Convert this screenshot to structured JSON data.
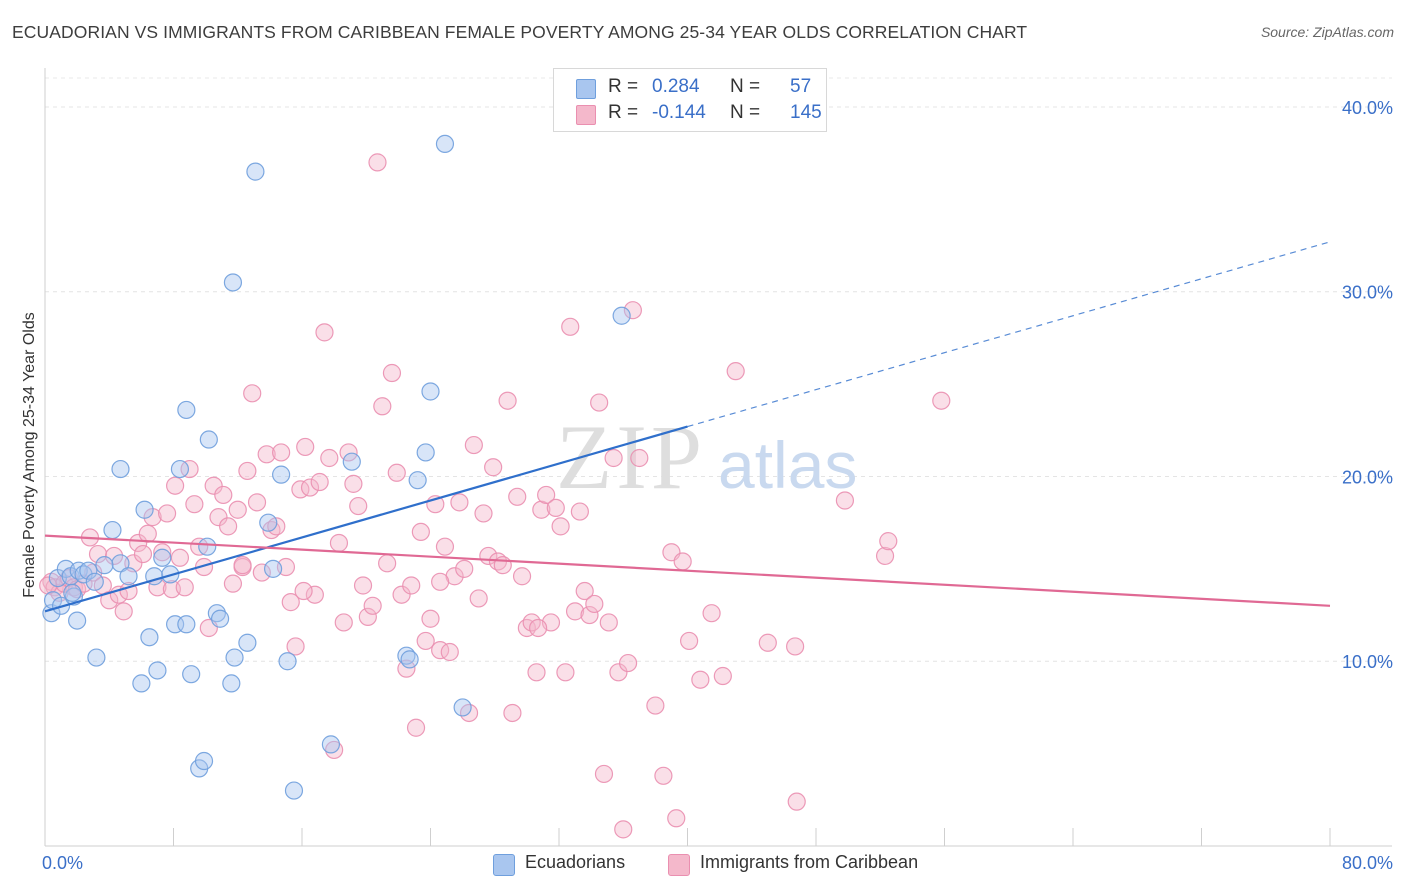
{
  "title": "ECUADORIAN VS IMMIGRANTS FROM CARIBBEAN FEMALE POVERTY AMONG 25-34 YEAR OLDS CORRELATION CHART",
  "source": "Source: ZipAtlas.com",
  "watermark": {
    "zip": "ZIP",
    "atlas": "atlas"
  },
  "legend": {
    "rows": [
      {
        "r_label": "R =",
        "r_value": "0.284",
        "n_label": "N =",
        "n_value": "57",
        "color": "#a9c6ef"
      },
      {
        "r_label": "R =",
        "r_value": "-0.144",
        "n_label": "N =",
        "n_value": "145",
        "color": "#f4b8cb"
      }
    ]
  },
  "bottom_legend": [
    {
      "label": "Ecuadorians",
      "color": "#a9c6ef"
    },
    {
      "label": "Immigrants from Caribbean",
      "color": "#f4b8cb"
    }
  ],
  "chart_data": {
    "type": "scatter",
    "title": "ECUADORIAN VS IMMIGRANTS FROM CARIBBEAN FEMALE POVERTY AMONG 25-34 YEAR OLDS CORRELATION CHART",
    "xlabel": "",
    "ylabel": "Female Poverty Among 25-34 Year Olds",
    "xlim": [
      0,
      80
    ],
    "ylim": [
      0,
      42
    ],
    "x_tick_labels": [
      "0.0%",
      "80.0%"
    ],
    "y_ticks": [
      10,
      20,
      30,
      40
    ],
    "y_tick_labels": [
      "10.0%",
      "20.0%",
      "30.0%",
      "40.0%"
    ],
    "grid": true,
    "legend_position": "top-center",
    "series": [
      {
        "name": "Ecuadorians",
        "color": "#6f9fdd",
        "fill": "#a9c6ef",
        "trend": {
          "x": [
            0,
            40
          ],
          "y": [
            12.7,
            22.7
          ],
          "dashed_extension": {
            "x": [
              40,
              80
            ],
            "y": [
              22.7,
              32.7
            ]
          },
          "color": "#2f6fcb"
        },
        "points": [
          [
            0.4,
            12.6
          ],
          [
            0.5,
            13.3
          ],
          [
            0.8,
            14.5
          ],
          [
            1.0,
            13.0
          ],
          [
            1.3,
            15.0
          ],
          [
            1.6,
            14.6
          ],
          [
            1.8,
            13.5
          ],
          [
            2.1,
            14.9
          ],
          [
            2.4,
            14.7
          ],
          [
            2.7,
            14.9
          ],
          [
            2.0,
            12.2
          ],
          [
            3.1,
            14.3
          ],
          [
            3.2,
            10.2
          ],
          [
            4.2,
            17.1
          ],
          [
            4.7,
            15.3
          ],
          [
            5.2,
            14.6
          ],
          [
            4.7,
            20.4
          ],
          [
            6.2,
            18.2
          ],
          [
            6.5,
            11.3
          ],
          [
            6.8,
            14.6
          ],
          [
            7.0,
            9.5
          ],
          [
            7.3,
            15.6
          ],
          [
            7.8,
            14.7
          ],
          [
            8.1,
            12.0
          ],
          [
            8.4,
            20.4
          ],
          [
            8.8,
            12.0
          ],
          [
            8.8,
            23.6
          ],
          [
            9.1,
            9.3
          ],
          [
            9.6,
            4.2
          ],
          [
            9.9,
            4.6
          ],
          [
            10.1,
            16.2
          ],
          [
            10.2,
            22.0
          ],
          [
            10.7,
            12.6
          ],
          [
            10.9,
            12.3
          ],
          [
            11.6,
            8.8
          ],
          [
            11.8,
            10.2
          ],
          [
            11.7,
            30.5
          ],
          [
            12.6,
            11.0
          ],
          [
            13.1,
            36.5
          ],
          [
            13.9,
            17.5
          ],
          [
            14.2,
            15.0
          ],
          [
            14.7,
            20.1
          ],
          [
            15.1,
            10.0
          ],
          [
            15.5,
            3.0
          ],
          [
            17.8,
            5.5
          ],
          [
            19.1,
            20.8
          ],
          [
            22.5,
            10.3
          ],
          [
            22.7,
            10.1
          ],
          [
            23.2,
            19.8
          ],
          [
            23.7,
            21.3
          ],
          [
            24.0,
            24.6
          ],
          [
            24.9,
            38.0
          ],
          [
            26.0,
            7.5
          ],
          [
            1.7,
            13.7
          ],
          [
            3.7,
            15.2
          ],
          [
            6.0,
            8.8
          ],
          [
            35.9,
            28.7
          ]
        ]
      },
      {
        "name": "Immigrants from Caribbean",
        "color": "#ea8fb0",
        "fill": "#f4b8cb",
        "trend": {
          "x": [
            0,
            80
          ],
          "y": [
            16.8,
            13.0
          ],
          "color": "#e06994"
        },
        "points": [
          [
            0.4,
            14.3
          ],
          [
            0.6,
            14.0
          ],
          [
            0.9,
            13.7
          ],
          [
            1.2,
            14.2
          ],
          [
            1.5,
            14.5
          ],
          [
            1.8,
            14.0
          ],
          [
            2.0,
            13.9
          ],
          [
            2.4,
            14.2
          ],
          [
            2.8,
            16.7
          ],
          [
            3.0,
            14.8
          ],
          [
            3.3,
            15.8
          ],
          [
            3.6,
            14.1
          ],
          [
            4.0,
            13.3
          ],
          [
            4.3,
            15.7
          ],
          [
            4.6,
            13.6
          ],
          [
            4.9,
            12.7
          ],
          [
            5.2,
            13.8
          ],
          [
            5.5,
            15.3
          ],
          [
            5.8,
            16.4
          ],
          [
            6.1,
            15.8
          ],
          [
            6.4,
            16.9
          ],
          [
            6.7,
            17.8
          ],
          [
            7.0,
            14.0
          ],
          [
            7.3,
            15.9
          ],
          [
            7.6,
            18.0
          ],
          [
            7.9,
            13.9
          ],
          [
            8.1,
            19.5
          ],
          [
            8.4,
            15.6
          ],
          [
            8.7,
            14.0
          ],
          [
            9.0,
            20.4
          ],
          [
            9.3,
            18.5
          ],
          [
            9.6,
            16.2
          ],
          [
            9.9,
            15.1
          ],
          [
            10.2,
            11.8
          ],
          [
            10.5,
            19.5
          ],
          [
            10.8,
            17.8
          ],
          [
            11.1,
            19.0
          ],
          [
            11.4,
            17.3
          ],
          [
            11.7,
            14.2
          ],
          [
            12.0,
            18.2
          ],
          [
            12.3,
            15.1
          ],
          [
            12.6,
            20.3
          ],
          [
            12.9,
            24.5
          ],
          [
            13.2,
            18.6
          ],
          [
            13.5,
            14.8
          ],
          [
            13.8,
            21.2
          ],
          [
            14.1,
            17.1
          ],
          [
            14.4,
            17.3
          ],
          [
            14.7,
            21.3
          ],
          [
            15.0,
            15.1
          ],
          [
            15.3,
            13.2
          ],
          [
            15.6,
            10.8
          ],
          [
            15.9,
            19.3
          ],
          [
            16.2,
            21.6
          ],
          [
            16.5,
            19.4
          ],
          [
            16.8,
            13.6
          ],
          [
            17.1,
            19.7
          ],
          [
            17.4,
            27.8
          ],
          [
            17.7,
            21.0
          ],
          [
            18.0,
            5.2
          ],
          [
            18.3,
            16.4
          ],
          [
            18.6,
            12.1
          ],
          [
            18.9,
            21.3
          ],
          [
            19.2,
            19.6
          ],
          [
            19.5,
            18.4
          ],
          [
            19.8,
            14.1
          ],
          [
            20.1,
            12.4
          ],
          [
            20.4,
            13.0
          ],
          [
            20.7,
            37.0
          ],
          [
            21.0,
            23.8
          ],
          [
            21.3,
            15.3
          ],
          [
            21.6,
            25.6
          ],
          [
            21.9,
            20.2
          ],
          [
            22.2,
            13.6
          ],
          [
            22.5,
            9.6
          ],
          [
            22.8,
            14.1
          ],
          [
            23.1,
            6.4
          ],
          [
            23.4,
            17.0
          ],
          [
            23.7,
            11.1
          ],
          [
            24.0,
            12.3
          ],
          [
            24.3,
            18.5
          ],
          [
            24.6,
            10.6
          ],
          [
            24.9,
            16.2
          ],
          [
            25.2,
            10.5
          ],
          [
            25.5,
            14.6
          ],
          [
            25.8,
            18.6
          ],
          [
            26.1,
            15.0
          ],
          [
            26.4,
            7.2
          ],
          [
            26.7,
            21.7
          ],
          [
            27.0,
            13.4
          ],
          [
            27.3,
            18.0
          ],
          [
            27.6,
            15.7
          ],
          [
            27.9,
            20.5
          ],
          [
            28.2,
            15.4
          ],
          [
            28.5,
            15.2
          ],
          [
            28.8,
            24.1
          ],
          [
            29.1,
            7.2
          ],
          [
            29.4,
            18.9
          ],
          [
            29.7,
            14.6
          ],
          [
            30.0,
            11.8
          ],
          [
            30.3,
            12.1
          ],
          [
            30.6,
            9.4
          ],
          [
            30.9,
            18.2
          ],
          [
            31.2,
            19.0
          ],
          [
            31.5,
            12.1
          ],
          [
            31.8,
            18.3
          ],
          [
            32.1,
            17.3
          ],
          [
            32.4,
            9.4
          ],
          [
            32.7,
            28.1
          ],
          [
            33.0,
            12.7
          ],
          [
            33.3,
            18.1
          ],
          [
            33.6,
            13.8
          ],
          [
            33.9,
            12.5
          ],
          [
            34.2,
            13.1
          ],
          [
            34.5,
            24.0
          ],
          [
            34.8,
            3.9
          ],
          [
            35.1,
            12.1
          ],
          [
            35.4,
            21.0
          ],
          [
            35.7,
            9.4
          ],
          [
            36.0,
            0.9
          ],
          [
            36.3,
            9.9
          ],
          [
            36.6,
            29.0
          ],
          [
            37.0,
            21.0
          ],
          [
            38.0,
            7.6
          ],
          [
            38.5,
            3.8
          ],
          [
            39.0,
            15.9
          ],
          [
            39.3,
            1.5
          ],
          [
            39.7,
            15.4
          ],
          [
            40.1,
            11.1
          ],
          [
            40.8,
            9.0
          ],
          [
            41.5,
            12.6
          ],
          [
            42.2,
            9.2
          ],
          [
            43.0,
            25.7
          ],
          [
            45.0,
            11.0
          ],
          [
            46.7,
            10.8
          ],
          [
            49.8,
            18.7
          ],
          [
            52.3,
            15.7
          ],
          [
            52.5,
            16.5
          ],
          [
            55.8,
            24.1
          ],
          [
            46.8,
            2.4
          ],
          [
            12.3,
            15.2
          ],
          [
            16.1,
            13.8
          ],
          [
            24.6,
            14.3
          ],
          [
            30.7,
            11.8
          ],
          [
            0.2,
            14.1
          ]
        ]
      }
    ]
  }
}
